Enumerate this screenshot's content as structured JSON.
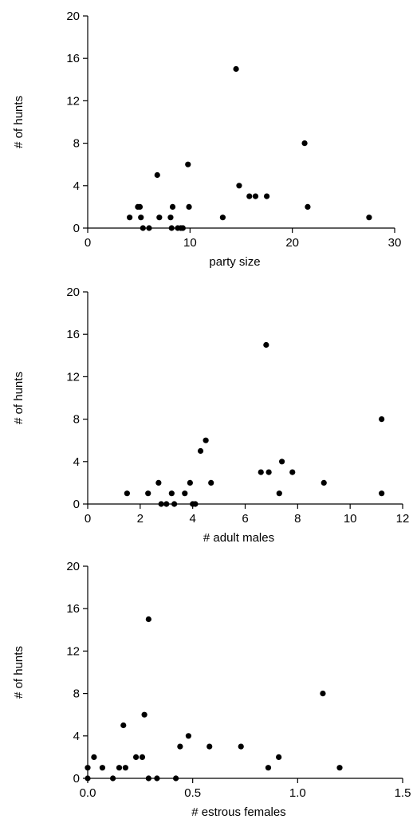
{
  "chart_data": [
    {
      "type": "scatter",
      "xlabel": "party size",
      "ylabel": "# of hunts",
      "xlim": [
        0,
        30
      ],
      "ylim": [
        0,
        20
      ],
      "xticks": [
        "0",
        "10",
        "20",
        "30"
      ],
      "yticks": [
        "0",
        "4",
        "8",
        "12",
        "16",
        "20"
      ],
      "grid": false,
      "points": [
        [
          4.1,
          1
        ],
        [
          4.9,
          2
        ],
        [
          5.1,
          2
        ],
        [
          5.2,
          1
        ],
        [
          5.4,
          0
        ],
        [
          6.0,
          0
        ],
        [
          6.8,
          5
        ],
        [
          7.0,
          1
        ],
        [
          8.1,
          1
        ],
        [
          8.3,
          2
        ],
        [
          8.2,
          0
        ],
        [
          8.8,
          0
        ],
        [
          9.1,
          0
        ],
        [
          9.3,
          0
        ],
        [
          9.8,
          6
        ],
        [
          9.9,
          2
        ],
        [
          13.2,
          1
        ],
        [
          14.5,
          15
        ],
        [
          14.8,
          4
        ],
        [
          15.8,
          3
        ],
        [
          16.4,
          3
        ],
        [
          17.5,
          3
        ],
        [
          21.2,
          8
        ],
        [
          21.5,
          2
        ],
        [
          27.5,
          1
        ]
      ]
    },
    {
      "type": "scatter",
      "xlabel": "# adult males",
      "ylabel": "# of hunts",
      "xlim": [
        0,
        12
      ],
      "ylim": [
        0,
        20
      ],
      "xticks": [
        "0",
        "2",
        "4",
        "6",
        "8",
        "10",
        "12"
      ],
      "yticks": [
        "0",
        "4",
        "8",
        "12",
        "16",
        "20"
      ],
      "grid": false,
      "points": [
        [
          1.5,
          1
        ],
        [
          2.3,
          1
        ],
        [
          2.7,
          2
        ],
        [
          2.8,
          0
        ],
        [
          3.0,
          0
        ],
        [
          3.2,
          1
        ],
        [
          3.3,
          0
        ],
        [
          3.7,
          1
        ],
        [
          3.9,
          2
        ],
        [
          4.0,
          0
        ],
        [
          4.1,
          0
        ],
        [
          4.3,
          5
        ],
        [
          4.5,
          6
        ],
        [
          4.7,
          2
        ],
        [
          6.6,
          3
        ],
        [
          6.8,
          15
        ],
        [
          6.9,
          3
        ],
        [
          7.3,
          1
        ],
        [
          7.4,
          4
        ],
        [
          7.8,
          3
        ],
        [
          9.0,
          2
        ],
        [
          11.2,
          8
        ],
        [
          11.2,
          1
        ]
      ]
    },
    {
      "type": "scatter",
      "xlabel": "# estrous females",
      "ylabel": "# of hunts",
      "xlim": [
        0,
        1.5
      ],
      "ylim": [
        0,
        20
      ],
      "xticks": [
        "0.0",
        "0.5",
        "1.0",
        "1.5"
      ],
      "yticks": [
        "0",
        "4",
        "8",
        "12",
        "16",
        "20"
      ],
      "grid": false,
      "points": [
        [
          0.0,
          0
        ],
        [
          0.0,
          1
        ],
        [
          0.03,
          2
        ],
        [
          0.07,
          1
        ],
        [
          0.12,
          0
        ],
        [
          0.15,
          1
        ],
        [
          0.17,
          5
        ],
        [
          0.18,
          1
        ],
        [
          0.23,
          2
        ],
        [
          0.26,
          2
        ],
        [
          0.27,
          6
        ],
        [
          0.29,
          15
        ],
        [
          0.29,
          0
        ],
        [
          0.33,
          0
        ],
        [
          0.42,
          0
        ],
        [
          0.44,
          3
        ],
        [
          0.48,
          4
        ],
        [
          0.58,
          3
        ],
        [
          0.73,
          3
        ],
        [
          0.86,
          1
        ],
        [
          0.91,
          2
        ],
        [
          1.12,
          8
        ],
        [
          1.2,
          1
        ]
      ]
    }
  ]
}
